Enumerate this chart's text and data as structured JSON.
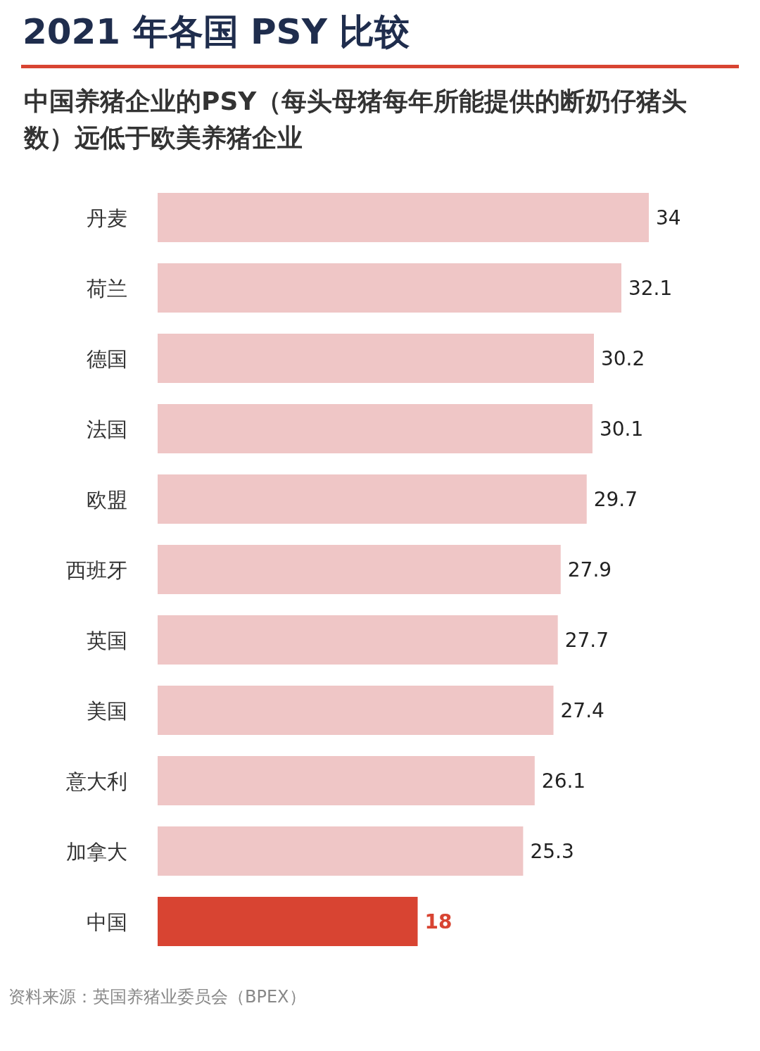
{
  "chart_data": {
    "type": "bar",
    "orientation": "horizontal",
    "title": "2021 年各国 PSY 比较",
    "subtitle": "中国养猪企业的PSY（每头母猪每年所能提供的断奶仔猪头数）远低于欧美养猪企业",
    "categories": [
      "丹麦",
      "荷兰",
      "德国",
      "法国",
      "欧盟",
      "西班牙",
      "英国",
      "美国",
      "意大利",
      "加拿大",
      "中国"
    ],
    "values": [
      34,
      32.1,
      30.2,
      30.1,
      29.7,
      27.9,
      27.7,
      27.4,
      26.1,
      25.3,
      18
    ],
    "colors": [
      "#efc6c6",
      "#efc6c6",
      "#efc6c6",
      "#efc6c6",
      "#efc6c6",
      "#efc6c6",
      "#efc6c6",
      "#efc6c6",
      "#efc6c6",
      "#efc6c6",
      "#d84432"
    ],
    "data_labels": true,
    "annotations": [
      "资料来源：英国养猪业委员会（BPEX）"
    ]
  }
}
